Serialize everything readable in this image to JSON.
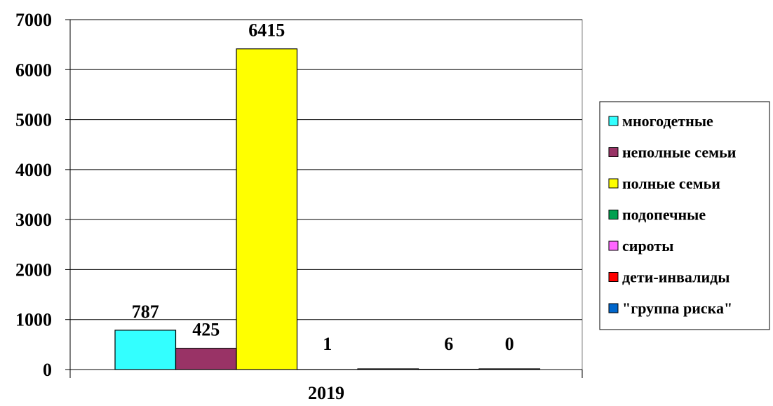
{
  "chart_data": {
    "type": "bar",
    "categories": [
      "2019"
    ],
    "series": [
      {
        "name": "многодетные",
        "values": [
          787
        ],
        "color": "#33FFFF",
        "label": "787"
      },
      {
        "name": "неполные семьи",
        "values": [
          425
        ],
        "color": "#993366",
        "label": "425"
      },
      {
        "name": "полные семьи",
        "values": [
          6415
        ],
        "color": "#FFFF00",
        "label": "6415"
      },
      {
        "name": "подопечные",
        "values": [
          1
        ],
        "color": "#00A050",
        "label": "1"
      },
      {
        "name": "сироты",
        "values": [
          0
        ],
        "color": "#FF66FF",
        "label": ""
      },
      {
        "name": "дети-инвалиды",
        "values": [
          6
        ],
        "color": "#FF0000",
        "label": "6"
      },
      {
        "name": "\"группа риска\"",
        "values": [
          0
        ],
        "color": "#0066CC",
        "label": "0"
      }
    ],
    "ylim": [
      0,
      7000
    ],
    "yticks": [
      "0",
      "1000",
      "2000",
      "3000",
      "4000",
      "5000",
      "6000",
      "7000"
    ],
    "grid": true,
    "legend_position": "right",
    "title": "",
    "xlabel": "",
    "ylabel": ""
  }
}
